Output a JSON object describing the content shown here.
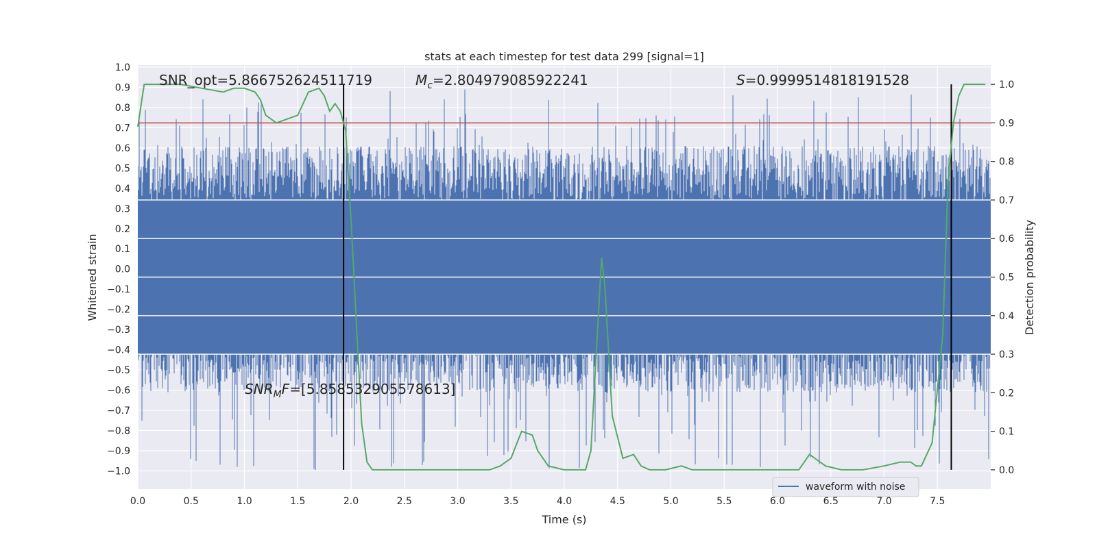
{
  "chart_data": {
    "type": "line",
    "title": "stats at each timestep for test data 299 [signal=1]",
    "xlabel": "Time (s)",
    "ylabel_left": "Whitened strain",
    "ylabel_right": "Detection probability",
    "xlim": [
      0.0,
      8.0
    ],
    "ylim_left": [
      -1.09,
      1.01
    ],
    "ylim_right": [
      -0.05,
      1.05
    ],
    "x_ticks": [
      "0.0",
      "0.5",
      "1.0",
      "1.5",
      "2.0",
      "2.5",
      "3.0",
      "3.5",
      "4.0",
      "4.5",
      "5.0",
      "5.5",
      "6.0",
      "6.5",
      "7.0",
      "7.5"
    ],
    "y_left_ticks": [
      "1.0",
      "0.9",
      "0.8",
      "0.7",
      "0.6",
      "0.5",
      "0.4",
      "0.3",
      "0.2",
      "0.1",
      "0.0",
      "−0.1",
      "−0.2",
      "−0.3",
      "−0.4",
      "−0.5",
      "−0.6",
      "−0.7",
      "−0.8",
      "−0.9",
      "−1.0"
    ],
    "y_right_ticks": [
      "1.0",
      "0.9",
      "0.8",
      "0.7",
      "0.6",
      "0.5",
      "0.4",
      "0.3",
      "0.2",
      "0.1",
      "0.0"
    ],
    "annotations": {
      "snr_opt": "SNR_opt=5.866752624511719",
      "mc_symbol": "M",
      "mc_sub": "c",
      "mc_value": "=2.804979085922241",
      "s_symbol": "S",
      "s_value": "=0.9999514818191528",
      "snr_mf_symbol": "SNR",
      "snr_mf_sub": "M",
      "snr_mf_f": "F",
      "snr_mf_value": "=[5.858532905578613]"
    },
    "legend": {
      "label": "waveform with noise",
      "position": "lower-right"
    },
    "series": [
      {
        "name": "waveform with noise",
        "axis": "left",
        "color": "#4c72b0",
        "description": "dense whitened strain noise, amplitude ~0.6 with spikes to ~0.9",
        "peak_envelope": 0.92,
        "trough_envelope": -1.0
      },
      {
        "name": "detection probability",
        "axis": "right",
        "color": "#55a868",
        "x": [
          0.0,
          0.06,
          0.2,
          0.4,
          0.6,
          0.8,
          0.9,
          1.0,
          1.1,
          1.15,
          1.2,
          1.3,
          1.4,
          1.5,
          1.6,
          1.7,
          1.75,
          1.8,
          1.85,
          1.9,
          1.95,
          2.0,
          2.05,
          2.1,
          2.15,
          2.2,
          2.3,
          2.5,
          2.7,
          3.0,
          3.3,
          3.4,
          3.5,
          3.6,
          3.7,
          3.75,
          3.85,
          4.0,
          4.1,
          4.2,
          4.25,
          4.3,
          4.35,
          4.38,
          4.45,
          4.55,
          4.65,
          4.72,
          4.8,
          4.95,
          5.1,
          5.2,
          5.3,
          5.5,
          5.8,
          6.0,
          6.2,
          6.3,
          6.35,
          6.45,
          6.6,
          6.8,
          7.0,
          7.15,
          7.25,
          7.3,
          7.35,
          7.45,
          7.55,
          7.6,
          7.65,
          7.7,
          7.75,
          7.8,
          7.85,
          7.95
        ],
        "values": [
          0.89,
          1.0,
          1.0,
          1.0,
          0.99,
          0.98,
          0.99,
          0.99,
          0.98,
          0.96,
          0.92,
          0.9,
          0.91,
          0.92,
          0.98,
          0.99,
          0.97,
          0.93,
          0.95,
          0.93,
          0.88,
          0.65,
          0.38,
          0.12,
          0.02,
          0.0,
          0.0,
          0.0,
          0.0,
          0.0,
          0.0,
          0.01,
          0.03,
          0.1,
          0.09,
          0.05,
          0.01,
          0.0,
          0.0,
          0.0,
          0.05,
          0.3,
          0.55,
          0.48,
          0.14,
          0.03,
          0.04,
          0.01,
          0.0,
          0.0,
          0.01,
          0.0,
          0.0,
          0.0,
          0.0,
          0.0,
          0.0,
          0.04,
          0.03,
          0.01,
          0.0,
          0.0,
          0.01,
          0.02,
          0.02,
          0.01,
          0.01,
          0.07,
          0.35,
          0.75,
          0.9,
          0.97,
          1.0,
          1.0,
          1.0,
          1.0
        ]
      }
    ],
    "hlines": [
      {
        "axis": "right",
        "value": 0.9,
        "color": "#c44e52"
      }
    ],
    "vlines": [
      {
        "x": 1.93,
        "color": "#000000"
      },
      {
        "x": 7.63,
        "color": "#000000"
      }
    ]
  }
}
